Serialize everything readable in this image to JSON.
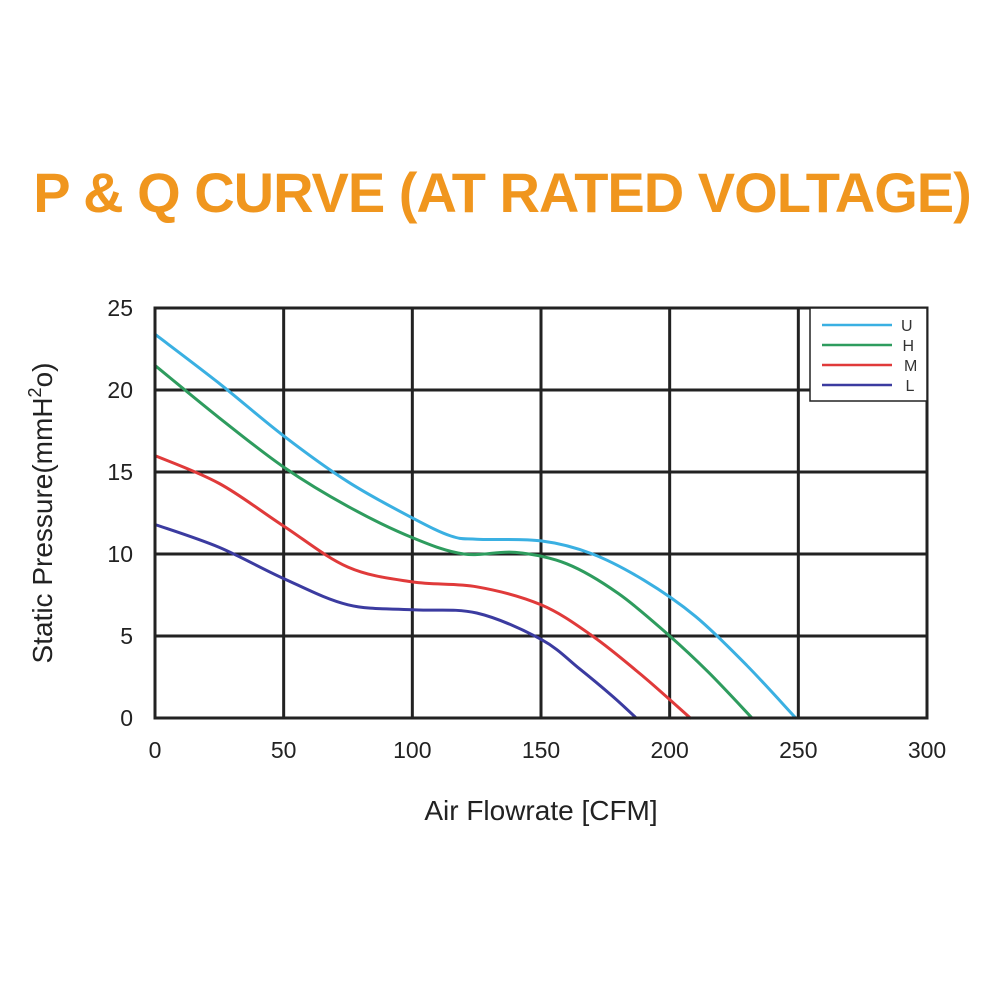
{
  "title": "P & Q CURVE (AT RATED VOLTAGE)",
  "chart_data": {
    "type": "line",
    "title": "P & Q CURVE (AT RATED VOLTAGE)",
    "xlabel": "Air  Flowrate   [CFM]",
    "ylabel_main": "Static Pressure(mmH",
    "ylabel_sup": "2",
    "ylabel_end": "o)",
    "xlim": [
      0,
      300
    ],
    "ylim": [
      0,
      25
    ],
    "xticks": [
      0,
      50,
      100,
      150,
      200,
      250,
      300
    ],
    "yticks": [
      0,
      5,
      10,
      15,
      20,
      25
    ],
    "grid": true,
    "legend_position": "top-right",
    "series": [
      {
        "name": "U",
        "color": "#3ab0e2",
        "x": [
          0,
          25,
          50,
          75,
          100,
          115,
          125,
          150,
          170,
          190,
          210,
          230,
          249
        ],
        "y": [
          23.4,
          20.4,
          17.2,
          14.4,
          12.2,
          11.1,
          10.9,
          10.8,
          10.0,
          8.4,
          6.2,
          3.2,
          0
        ]
      },
      {
        "name": "H",
        "color": "#2e9c5e",
        "x": [
          0,
          25,
          50,
          75,
          100,
          120,
          140,
          160,
          180,
          200,
          215,
          232
        ],
        "y": [
          21.5,
          18.3,
          15.3,
          12.9,
          11.0,
          10.0,
          10.1,
          9.4,
          7.6,
          5.0,
          2.8,
          0
        ]
      },
      {
        "name": "M",
        "color": "#e03a3a",
        "x": [
          0,
          25,
          50,
          75,
          100,
          125,
          150,
          170,
          190,
          208
        ],
        "y": [
          16.0,
          14.3,
          11.7,
          9.2,
          8.3,
          8.0,
          6.9,
          5.0,
          2.5,
          0
        ]
      },
      {
        "name": "L",
        "color": "#3b3ba0",
        "x": [
          0,
          25,
          50,
          75,
          100,
          125,
          150,
          165,
          178,
          187
        ],
        "y": [
          11.8,
          10.4,
          8.5,
          6.9,
          6.6,
          6.4,
          4.8,
          3.0,
          1.3,
          0
        ]
      }
    ]
  }
}
